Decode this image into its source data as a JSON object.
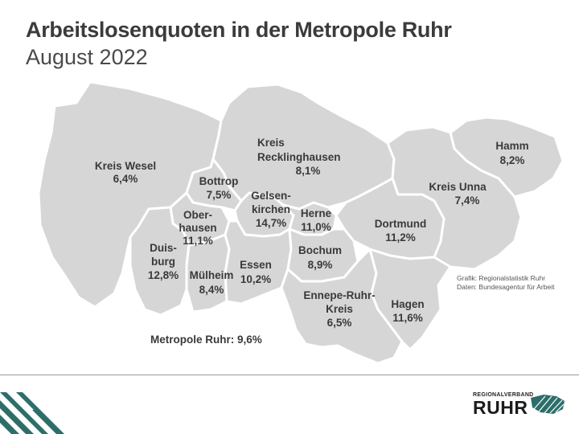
{
  "header": {
    "title": "Arbeitslosenquoten in der Metropole Ruhr",
    "subtitle": "August 2022"
  },
  "regions": {
    "wesel": {
      "name": "Kreis Wesel",
      "value": "6,4%"
    },
    "recklinghausen": {
      "name_line1": "Kreis",
      "name_line2": "Recklinghausen",
      "value": "8,1%"
    },
    "hamm": {
      "name": "Hamm",
      "value": "8,2%"
    },
    "unna": {
      "name": "Kreis Unna",
      "value": "7,4%"
    },
    "bottrop": {
      "name": "Bottrop",
      "value": "7,5%"
    },
    "gelsenkirchen": {
      "name_line1": "Gelsen-",
      "name_line2": "kirchen",
      "value": "14,7%"
    },
    "herne": {
      "name": "Herne",
      "value": "11,0%"
    },
    "dortmund": {
      "name": "Dortmund",
      "value": "11,2%"
    },
    "oberhausen": {
      "name_line1": "Ober-",
      "name_line2": "hausen",
      "value": "11,1%"
    },
    "duisburg": {
      "name_line1": "Duis-",
      "name_line2": "burg",
      "value": "12,8%"
    },
    "muelheim": {
      "name": "Mülheim",
      "value": "8,4%"
    },
    "essen": {
      "name": "Essen",
      "value": "10,2%"
    },
    "bochum": {
      "name": "Bochum",
      "value": "8,9%"
    },
    "ennepe": {
      "name_line1": "Ennepe-Ruhr-",
      "name_line2": "Kreis",
      "value": "6,5%"
    },
    "hagen": {
      "name": "Hagen",
      "value": "11,6%"
    }
  },
  "summary": {
    "label": "Metropole Ruhr:",
    "value": "9,6%"
  },
  "source": {
    "line1": "Grafik: Regionalstatistik Ruhr",
    "line2": "Daten: Bundesagentur für Arbeit"
  },
  "logo": {
    "top": "REGIONALVERBAND",
    "main": "RUHR"
  },
  "colors": {
    "region_fill": "#d6d6d6",
    "border": "#ffffff",
    "accent_stripes": "#2d6e6a"
  }
}
